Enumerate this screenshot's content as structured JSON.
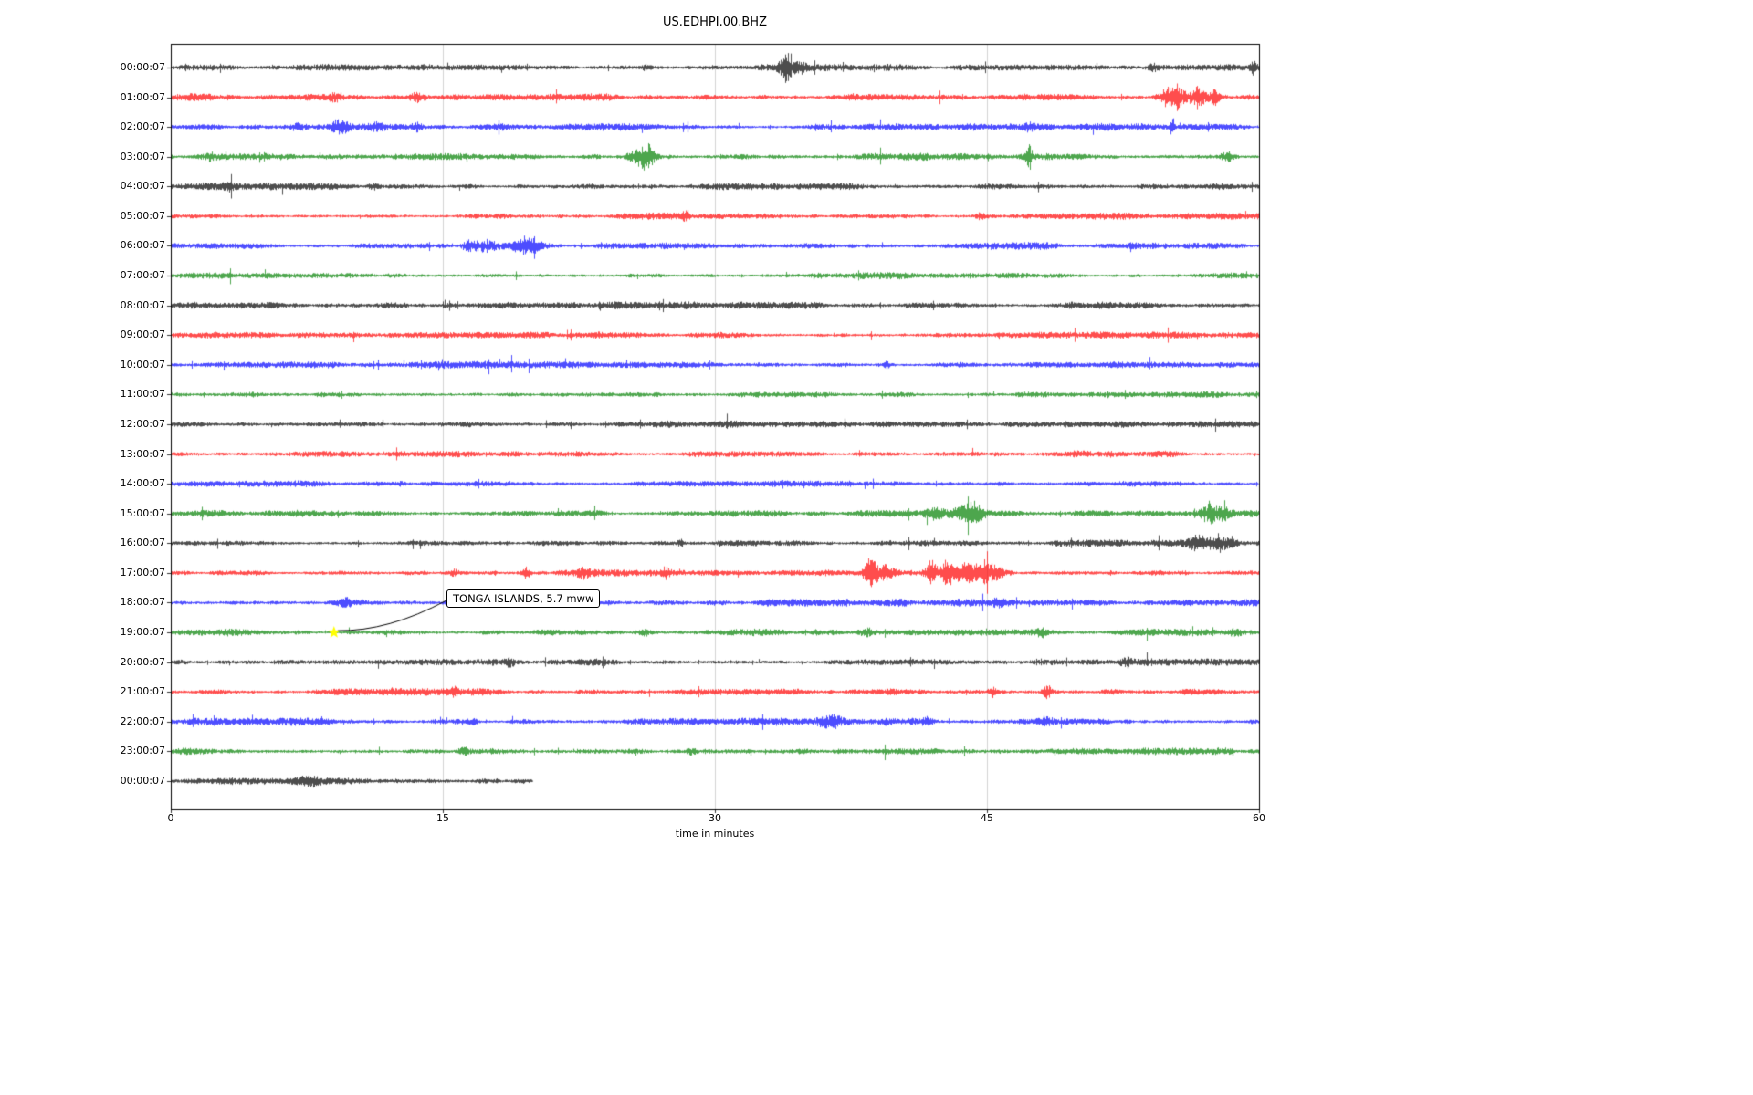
{
  "title": "US.EDHPI.00.BHZ",
  "xlabel": "time in minutes",
  "annotation": {
    "text": "TONGA ISLANDS, 5.7 mww",
    "row_label": "19:00:07",
    "x_minutes": 9.0,
    "marker": "star-marker",
    "marker_color": "#ffff00"
  },
  "chart_data": {
    "type": "line",
    "subtype": "seismogram-dayplot",
    "title": "US.EDHPI.00.BHZ",
    "xlabel": "time in minutes",
    "x_ticks": [
      0,
      15,
      30,
      45,
      60
    ],
    "x_range_minutes": [
      0,
      60
    ],
    "grid": "vertical",
    "grid_color": "#c8c8c8",
    "frame_color": "#000000",
    "colors_cycle": [
      "#000000",
      "#ff0000",
      "#0000ff",
      "#008000"
    ],
    "event_format": "[minute, amplitude_px, sigma_minutes]",
    "rows": [
      {
        "label": "00:00:07",
        "color": "#000000",
        "base_amp": 2.2,
        "end_minute": 60,
        "events": [
          [
            33.9,
            16,
            0.22
          ],
          [
            34.6,
            6,
            0.35
          ],
          [
            26.2,
            3,
            0.2
          ],
          [
            54.1,
            4,
            0.25
          ],
          [
            59.7,
            9,
            0.1
          ]
        ]
      },
      {
        "label": "01:00:07",
        "color": "#ff0000",
        "base_amp": 2.4,
        "end_minute": 60,
        "events": [
          [
            9.0,
            5,
            0.35
          ],
          [
            13.6,
            6,
            0.3
          ],
          [
            47.1,
            3,
            0.2
          ],
          [
            55.3,
            17,
            0.45
          ],
          [
            56.6,
            12,
            0.3
          ],
          [
            57.5,
            8,
            0.18
          ]
        ]
      },
      {
        "label": "02:00:07",
        "color": "#0000ff",
        "base_amp": 2.4,
        "end_minute": 60,
        "events": [
          [
            7.0,
            4,
            0.3
          ],
          [
            9.3,
            7,
            0.35
          ],
          [
            11.2,
            4,
            0.3
          ],
          [
            13.6,
            6,
            0.22
          ],
          [
            47.3,
            3,
            0.15
          ],
          [
            55.2,
            12,
            0.1
          ]
        ]
      },
      {
        "label": "03:00:07",
        "color": "#008000",
        "base_amp": 2.4,
        "end_minute": 60,
        "events": [
          [
            2.2,
            3,
            0.3
          ],
          [
            25.9,
            13,
            0.45
          ],
          [
            26.4,
            9,
            0.25
          ],
          [
            47.3,
            16,
            0.1
          ],
          [
            58.2,
            5,
            0.25
          ]
        ]
      },
      {
        "label": "04:00:07",
        "color": "#000000",
        "base_amp": 2.2,
        "end_minute": 60,
        "events": [
          [
            3.1,
            3,
            0.3
          ],
          [
            11.2,
            3,
            0.25
          ]
        ]
      },
      {
        "label": "05:00:07",
        "color": "#ff0000",
        "base_amp": 2.2,
        "end_minute": 60,
        "events": [
          [
            28.4,
            5,
            0.13
          ],
          [
            44.6,
            3,
            0.2
          ]
        ]
      },
      {
        "label": "06:00:07",
        "color": "#0000ff",
        "base_amp": 2.4,
        "end_minute": 60,
        "events": [
          [
            16.4,
            5,
            0.25
          ],
          [
            17.4,
            7,
            0.5
          ],
          [
            19.6,
            10,
            0.7
          ]
        ]
      },
      {
        "label": "07:00:07",
        "color": "#008000",
        "base_amp": 2.2,
        "end_minute": 60,
        "events": []
      },
      {
        "label": "08:00:07",
        "color": "#000000",
        "base_amp": 2.6,
        "end_minute": 60,
        "events": [
          [
            12.1,
            3,
            0.4
          ]
        ]
      },
      {
        "label": "09:00:07",
        "color": "#ff0000",
        "base_amp": 2.2,
        "end_minute": 60,
        "events": []
      },
      {
        "label": "10:00:07",
        "color": "#0000ff",
        "base_amp": 2.3,
        "end_minute": 60,
        "events": [
          [
            39.5,
            4,
            0.13
          ]
        ]
      },
      {
        "label": "11:00:07",
        "color": "#008000",
        "base_amp": 2.2,
        "end_minute": 60,
        "events": []
      },
      {
        "label": "12:00:07",
        "color": "#000000",
        "base_amp": 2.2,
        "end_minute": 60,
        "events": []
      },
      {
        "label": "13:00:07",
        "color": "#ff0000",
        "base_amp": 2.2,
        "end_minute": 60,
        "events": []
      },
      {
        "label": "14:00:07",
        "color": "#0000ff",
        "base_amp": 2.2,
        "end_minute": 60,
        "events": []
      },
      {
        "label": "15:00:07",
        "color": "#008000",
        "base_amp": 2.3,
        "end_minute": 60,
        "events": [
          [
            42.1,
            7,
            0.35
          ],
          [
            43.7,
            10,
            0.45
          ],
          [
            44.4,
            8,
            0.3
          ],
          [
            57.3,
            12,
            0.35
          ],
          [
            58.1,
            7,
            0.3
          ]
        ]
      },
      {
        "label": "16:00:07",
        "color": "#000000",
        "base_amp": 2.3,
        "end_minute": 60,
        "events": [
          [
            28.1,
            4,
            0.13
          ],
          [
            56.6,
            9,
            0.35
          ],
          [
            57.7,
            10,
            0.35
          ],
          [
            58.4,
            6,
            0.3
          ]
        ]
      },
      {
        "label": "17:00:07",
        "color": "#ff0000",
        "base_amp": 2.4,
        "end_minute": 60,
        "events": [
          [
            15.6,
            4,
            0.2
          ],
          [
            19.6,
            7,
            0.18
          ],
          [
            22.7,
            6,
            0.22
          ],
          [
            27.3,
            6,
            0.18
          ],
          [
            38.6,
            16,
            0.25
          ],
          [
            39.4,
            8,
            0.35
          ],
          [
            41.9,
            14,
            0.25
          ],
          [
            42.8,
            20,
            0.22
          ],
          [
            43.7,
            14,
            0.28
          ],
          [
            44.6,
            12,
            0.35
          ],
          [
            45.4,
            8,
            0.4
          ]
        ]
      },
      {
        "label": "18:00:07",
        "color": "#0000ff",
        "base_amp": 2.4,
        "end_minute": 60,
        "events": [
          [
            9.6,
            5,
            0.18
          ],
          [
            45.6,
            4,
            0.25
          ],
          [
            56.1,
            3,
            0.2
          ]
        ]
      },
      {
        "label": "19:00:07",
        "color": "#008000",
        "base_amp": 2.3,
        "end_minute": 60,
        "events": [
          [
            26.1,
            4,
            0.3
          ],
          [
            38.4,
            4,
            0.3
          ],
          [
            47.9,
            5,
            0.25
          ],
          [
            58.6,
            4,
            0.25
          ]
        ]
      },
      {
        "label": "20:00:07",
        "color": "#000000",
        "base_amp": 2.3,
        "end_minute": 60,
        "events": [
          [
            18.7,
            4,
            0.13
          ],
          [
            52.7,
            4,
            0.18
          ]
        ]
      },
      {
        "label": "21:00:07",
        "color": "#ff0000",
        "base_amp": 2.3,
        "end_minute": 60,
        "events": [
          [
            15.6,
            3,
            0.2
          ],
          [
            45.3,
            6,
            0.18
          ],
          [
            48.3,
            7,
            0.18
          ]
        ]
      },
      {
        "label": "22:00:07",
        "color": "#0000ff",
        "base_amp": 2.5,
        "end_minute": 60,
        "events": [
          [
            16.6,
            4,
            0.2
          ],
          [
            36.4,
            7,
            0.45
          ],
          [
            41.6,
            4,
            0.3
          ],
          [
            48.1,
            4,
            0.3
          ]
        ]
      },
      {
        "label": "23:00:07",
        "color": "#008000",
        "base_amp": 2.3,
        "end_minute": 60,
        "events": [
          [
            16.1,
            4,
            0.18
          ],
          [
            28.7,
            4,
            0.22
          ]
        ]
      },
      {
        "label": "00:00:07",
        "color": "#000000",
        "base_amp": 2.6,
        "end_minute": 20,
        "events": [
          [
            7.6,
            4,
            0.6
          ]
        ]
      }
    ]
  }
}
